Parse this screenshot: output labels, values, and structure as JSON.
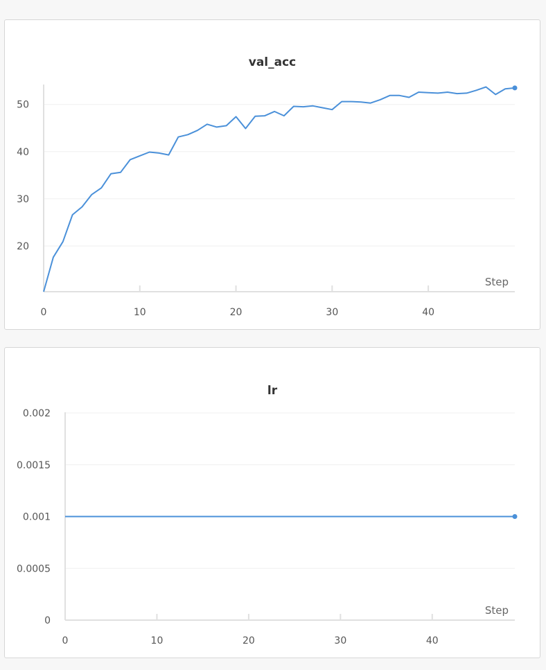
{
  "colors": {
    "line": "#4a90d9",
    "axis": "#e0e0e0",
    "grid": "#efefef"
  },
  "chart_data": [
    {
      "type": "line",
      "title": "val_acc",
      "xlabel": "Step",
      "ylabel": "",
      "xlim": [
        0,
        49
      ],
      "ylim": [
        10.3,
        54
      ],
      "xticks": [
        0,
        10,
        20,
        30,
        40
      ],
      "yticks": [
        20,
        30,
        40,
        50
      ],
      "ytick_labels": [
        "20",
        "30",
        "40",
        "50"
      ],
      "grid": true,
      "last_point_marker": true,
      "series": [
        {
          "x": [
            0,
            1,
            2,
            3,
            4,
            5,
            6,
            7,
            8,
            9,
            10,
            11,
            12,
            13,
            14,
            15,
            16,
            17,
            18,
            19,
            20,
            21,
            22,
            23,
            24,
            25,
            26,
            27,
            28,
            29,
            30,
            31,
            32,
            33,
            34,
            35,
            36,
            37,
            38,
            39,
            40,
            41,
            42,
            43,
            44,
            45,
            46,
            47,
            48,
            49
          ],
          "y": [
            10.3,
            17.6,
            20.9,
            26.6,
            28.3,
            30.9,
            32.3,
            35.3,
            35.6,
            38.3,
            39.1,
            39.9,
            39.7,
            39.3,
            43.1,
            43.6,
            44.5,
            45.8,
            45.2,
            45.5,
            47.4,
            44.9,
            47.5,
            47.6,
            48.5,
            47.6,
            49.6,
            49.5,
            49.7,
            49.3,
            48.9,
            50.6,
            50.6,
            50.5,
            50.3,
            51.0,
            51.9,
            51.9,
            51.5,
            52.6,
            52.5,
            52.4,
            52.6,
            52.3,
            52.4,
            53.0,
            53.7,
            52.1,
            53.3,
            53.5
          ]
        }
      ]
    },
    {
      "type": "line",
      "title": "lr",
      "xlabel": "Step",
      "ylabel": "",
      "xlim": [
        0,
        49
      ],
      "ylim": [
        0,
        0.002
      ],
      "xticks": [
        0,
        10,
        20,
        30,
        40
      ],
      "yticks": [
        0,
        0.0005,
        0.001,
        0.0015,
        0.002
      ],
      "ytick_labels": [
        "0",
        "0.0005",
        "0.001",
        "0.0015",
        "0.002"
      ],
      "grid": true,
      "last_point_marker": true,
      "series": [
        {
          "x": [
            0,
            1,
            2,
            3,
            4,
            5,
            6,
            7,
            8,
            9,
            10,
            11,
            12,
            13,
            14,
            15,
            16,
            17,
            18,
            19,
            20,
            21,
            22,
            23,
            24,
            25,
            26,
            27,
            28,
            29,
            30,
            31,
            32,
            33,
            34,
            35,
            36,
            37,
            38,
            39,
            40,
            41,
            42,
            43,
            44,
            45,
            46,
            47,
            48,
            49
          ],
          "y": [
            0.001,
            0.001,
            0.001,
            0.001,
            0.001,
            0.001,
            0.001,
            0.001,
            0.001,
            0.001,
            0.001,
            0.001,
            0.001,
            0.001,
            0.001,
            0.001,
            0.001,
            0.001,
            0.001,
            0.001,
            0.001,
            0.001,
            0.001,
            0.001,
            0.001,
            0.001,
            0.001,
            0.001,
            0.001,
            0.001,
            0.001,
            0.001,
            0.001,
            0.001,
            0.001,
            0.001,
            0.001,
            0.001,
            0.001,
            0.001,
            0.001,
            0.001,
            0.001,
            0.001,
            0.001,
            0.001,
            0.001,
            0.001,
            0.001,
            0.001
          ]
        }
      ]
    }
  ]
}
